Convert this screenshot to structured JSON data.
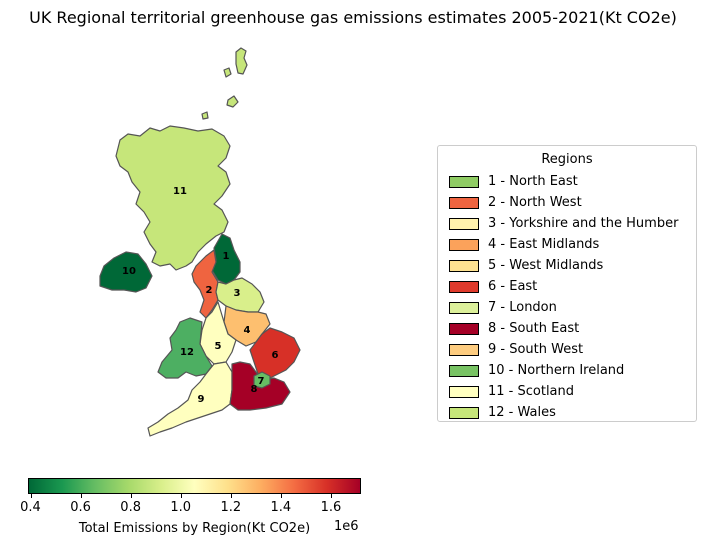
{
  "title": "UK Regional territorial greenhouse gas emissions estimates 2005-2021(Kt CO2e)",
  "legend": {
    "title": "Regions",
    "items": [
      {
        "label": "1 - North East",
        "color": "#8fcc64"
      },
      {
        "label": "2 - North West",
        "color": "#ef6440"
      },
      {
        "label": "3 - Yorkshire and the Humber",
        "color": "#fff2ac"
      },
      {
        "label": "4 - East Midlands",
        "color": "#fba25b"
      },
      {
        "label": "5 - West Midlands",
        "color": "#fee291"
      },
      {
        "label": "6 - East",
        "color": "#df3a2c"
      },
      {
        "label": "7 - London",
        "color": "#dcf09a"
      },
      {
        "label": "8 - South East",
        "color": "#a50026"
      },
      {
        "label": "9 - South West",
        "color": "#fdcc80"
      },
      {
        "label": "10 - Northern Ireland",
        "color": "#78c364"
      },
      {
        "label": "11 - Scotland",
        "color": "#ffffc0"
      },
      {
        "label": "12 - Wales",
        "color": "#c6e67a"
      }
    ]
  },
  "map_labels": [
    "1",
    "2",
    "3",
    "4",
    "5",
    "6",
    "7",
    "8",
    "9",
    "10",
    "11",
    "12"
  ],
  "colorbar": {
    "label": "Total Emissions by Region(Kt CO2e)",
    "exponent": "1e6",
    "ticks": [
      "0.4",
      "0.6",
      "0.8",
      "1.0",
      "1.2",
      "1.4",
      "1.6"
    ],
    "range": [
      0.39,
      1.72
    ],
    "cmap": "RdYlGn_r"
  }
}
